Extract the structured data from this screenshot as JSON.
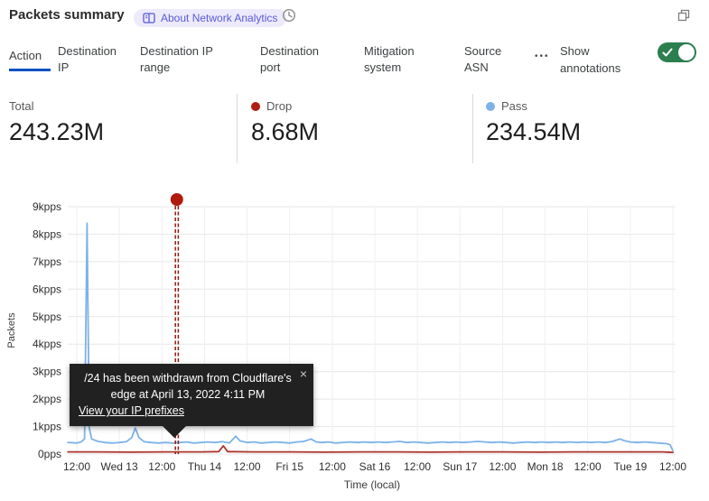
{
  "header": {
    "title": "Packets summary",
    "badge_label": "About Network Analytics"
  },
  "icons": {
    "badge": "book-icon",
    "history": "clock-icon",
    "popout": "overlapping-squares-icon"
  },
  "tabs": {
    "accent_color": "#0051c3",
    "items": [
      {
        "label": "Action",
        "selected": true
      },
      {
        "label": "Destination IP",
        "selected": false
      },
      {
        "label": "Destination IP range",
        "selected": false
      },
      {
        "label": "Destination port",
        "selected": false
      },
      {
        "label": "Mitigation system",
        "selected": false
      },
      {
        "label": "Source ASN",
        "selected": false
      }
    ],
    "more_glyph": "•••",
    "annotations_label": "Show annotations",
    "annotations_on": true,
    "toggle_color": "#2c7e4f"
  },
  "stats": {
    "items": [
      {
        "label": "Total",
        "value": "243.23M",
        "dot_color": null
      },
      {
        "label": "Drop",
        "value": "8.68M",
        "dot_color": "#b01d12"
      },
      {
        "label": "Pass",
        "value": "234.54M",
        "dot_color": "#7db2e8"
      }
    ]
  },
  "tooltip": {
    "message": "/24 has been withdrawn from Cloudflare's edge at April 13, 2022 4:11 PM",
    "link_label": "View your IP prefixes",
    "close_glyph": "×"
  },
  "chart_data": {
    "type": "line",
    "title": "Packets summary",
    "xlabel": "Time (local)",
    "ylabel": "Packets",
    "ylim": [
      0,
      9
    ],
    "y_unit": "kpps",
    "grid": true,
    "y_ticks": [
      {
        "v": 0,
        "label": "0pps"
      },
      {
        "v": 1,
        "label": "1kpps"
      },
      {
        "v": 2,
        "label": "2kpps"
      },
      {
        "v": 3,
        "label": "3kpps"
      },
      {
        "v": 4,
        "label": "4kpps"
      },
      {
        "v": 5,
        "label": "5kpps"
      },
      {
        "v": 6,
        "label": "6kpps"
      },
      {
        "v": 7,
        "label": "7kpps"
      },
      {
        "v": 8,
        "label": "8kpps"
      },
      {
        "v": 9,
        "label": "9kpps"
      }
    ],
    "x_ticks": [
      {
        "t": 0,
        "label": "12:00"
      },
      {
        "t": 12,
        "label": "Wed 13"
      },
      {
        "t": 24,
        "label": "12:00"
      },
      {
        "t": 36,
        "label": "Thu 14"
      },
      {
        "t": 48,
        "label": "12:00"
      },
      {
        "t": 60,
        "label": "Fri 15"
      },
      {
        "t": 72,
        "label": "12:00"
      },
      {
        "t": 84,
        "label": "Sat 16"
      },
      {
        "t": 96,
        "label": "12:00"
      },
      {
        "t": 108,
        "label": "Sun 17"
      },
      {
        "t": 120,
        "label": "12:00"
      },
      {
        "t": 132,
        "label": "Mon 18"
      },
      {
        "t": 144,
        "label": "12:00"
      },
      {
        "t": 156,
        "label": "Tue 19"
      },
      {
        "t": 168,
        "label": "12:00"
      }
    ],
    "xlim_hours": [
      -2.5,
      168
    ],
    "series": [
      {
        "name": "Pass",
        "color": "#7db2e8",
        "total": "234.54M",
        "points": [
          [
            -2.5,
            0.42
          ],
          [
            0,
            0.4
          ],
          [
            1.2,
            0.44
          ],
          [
            2.2,
            0.55
          ],
          [
            2.9,
            8.4
          ],
          [
            3.5,
            0.95
          ],
          [
            4.2,
            0.55
          ],
          [
            6,
            0.46
          ],
          [
            8,
            0.42
          ],
          [
            10,
            0.4
          ],
          [
            12,
            0.42
          ],
          [
            14,
            0.45
          ],
          [
            15.5,
            0.6
          ],
          [
            16.5,
            0.95
          ],
          [
            17.5,
            0.6
          ],
          [
            19,
            0.45
          ],
          [
            21,
            0.42
          ],
          [
            23,
            0.4
          ],
          [
            25,
            0.42
          ],
          [
            27,
            0.4
          ],
          [
            29,
            0.42
          ],
          [
            31,
            0.44
          ],
          [
            33,
            0.4
          ],
          [
            35,
            0.42
          ],
          [
            37,
            0.44
          ],
          [
            39,
            0.42
          ],
          [
            41,
            0.45
          ],
          [
            43,
            0.4
          ],
          [
            44.8,
            0.65
          ],
          [
            46,
            0.48
          ],
          [
            48,
            0.42
          ],
          [
            50,
            0.44
          ],
          [
            52,
            0.4
          ],
          [
            54,
            0.42
          ],
          [
            56,
            0.44
          ],
          [
            58,
            0.42
          ],
          [
            60,
            0.4
          ],
          [
            62,
            0.44
          ],
          [
            64,
            0.46
          ],
          [
            66,
            0.55
          ],
          [
            67.5,
            0.44
          ],
          [
            69,
            0.42
          ],
          [
            71,
            0.44
          ],
          [
            73,
            0.4
          ],
          [
            75,
            0.42
          ],
          [
            77,
            0.44
          ],
          [
            79,
            0.42
          ],
          [
            81,
            0.44
          ],
          [
            83,
            0.42
          ],
          [
            85,
            0.44
          ],
          [
            87,
            0.42
          ],
          [
            89,
            0.44
          ],
          [
            91,
            0.46
          ],
          [
            93,
            0.42
          ],
          [
            95,
            0.44
          ],
          [
            97,
            0.42
          ],
          [
            99,
            0.4
          ],
          [
            101,
            0.42
          ],
          [
            103,
            0.44
          ],
          [
            105,
            0.42
          ],
          [
            107,
            0.44
          ],
          [
            109,
            0.42
          ],
          [
            111,
            0.44
          ],
          [
            113,
            0.46
          ],
          [
            115,
            0.44
          ],
          [
            117,
            0.42
          ],
          [
            119,
            0.44
          ],
          [
            121,
            0.42
          ],
          [
            123,
            0.4
          ],
          [
            125,
            0.42
          ],
          [
            127,
            0.44
          ],
          [
            129,
            0.42
          ],
          [
            131,
            0.44
          ],
          [
            133,
            0.42
          ],
          [
            135,
            0.44
          ],
          [
            137,
            0.42
          ],
          [
            139,
            0.44
          ],
          [
            141,
            0.42
          ],
          [
            143,
            0.44
          ],
          [
            145,
            0.42
          ],
          [
            147,
            0.44
          ],
          [
            149,
            0.42
          ],
          [
            151,
            0.46
          ],
          [
            153,
            0.55
          ],
          [
            154.5,
            0.48
          ],
          [
            156,
            0.44
          ],
          [
            158,
            0.42
          ],
          [
            160,
            0.44
          ],
          [
            162,
            0.42
          ],
          [
            164,
            0.4
          ],
          [
            166,
            0.38
          ],
          [
            167.2,
            0.34
          ],
          [
            168,
            0.12
          ]
        ]
      },
      {
        "name": "Drop",
        "color": "#ad332b",
        "total": "8.68M",
        "points": [
          [
            -2.5,
            0.08
          ],
          [
            5,
            0.08
          ],
          [
            15,
            0.07
          ],
          [
            25,
            0.08
          ],
          [
            35,
            0.08
          ],
          [
            40,
            0.09
          ],
          [
            41.3,
            0.3
          ],
          [
            42.5,
            0.09
          ],
          [
            50,
            0.08
          ],
          [
            60,
            0.08
          ],
          [
            70,
            0.07
          ],
          [
            80,
            0.08
          ],
          [
            90,
            0.08
          ],
          [
            100,
            0.07
          ],
          [
            110,
            0.08
          ],
          [
            120,
            0.08
          ],
          [
            130,
            0.07
          ],
          [
            140,
            0.08
          ],
          [
            150,
            0.08
          ],
          [
            160,
            0.08
          ],
          [
            165,
            0.08
          ],
          [
            168,
            0.06
          ]
        ]
      }
    ],
    "annotation": {
      "t_hours": 28.2,
      "date_label": "April 13, 2022 4:11 PM",
      "line_color": "#8f1b10",
      "dot_color": "#b11a0e"
    }
  }
}
